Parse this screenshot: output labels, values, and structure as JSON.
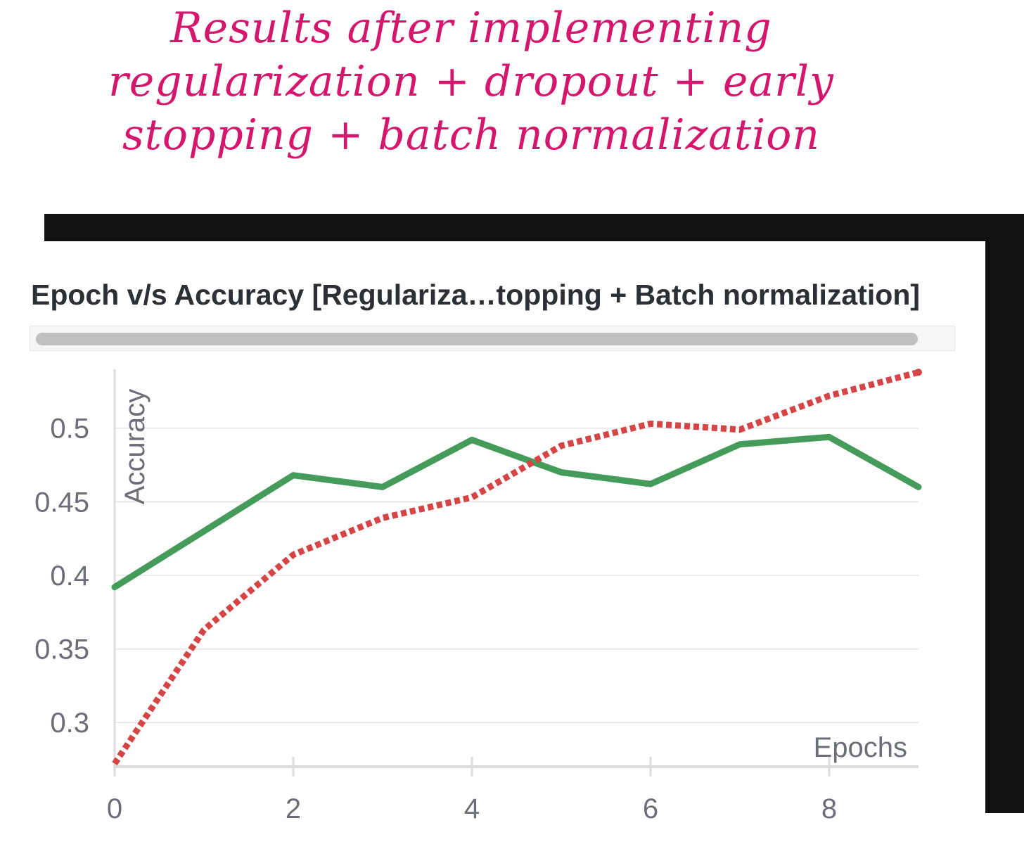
{
  "annotation": {
    "line1": "Results after implementing",
    "line2": "regularization + dropout + early",
    "line3": "stopping + batch normalization"
  },
  "panel": {
    "title": "Epoch v/s Accuracy [Regulariza…topping + Batch normalization]"
  },
  "colors": {
    "annotation": "#d4176d",
    "frame": "#111111",
    "series_solid": "#459b5a",
    "series_dotted": "#d64545",
    "grid": "#e5e5e5",
    "axis": "#dcdcdc",
    "tick_text": "#6b6e76"
  },
  "chart_data": {
    "type": "line",
    "title": "Epoch v/s Accuracy [Regulariza…topping + Batch normalization]",
    "xlabel": "Epochs",
    "ylabel": "Accuracy",
    "xlim": [
      0,
      9
    ],
    "ylim": [
      0.27,
      0.54
    ],
    "xticks": [
      0,
      2,
      4,
      6,
      8
    ],
    "yticks": [
      0.3,
      0.35,
      0.4,
      0.45,
      0.5
    ],
    "ytick_labels": [
      "0.3",
      "0.35",
      "0.4",
      "0.45",
      "0.5"
    ],
    "x": [
      0,
      1,
      2,
      3,
      4,
      5,
      6,
      7,
      8,
      9
    ],
    "grid": "horizontal",
    "legend": "none",
    "series": [
      {
        "style": "solid",
        "color": "#459b5a",
        "values": [
          0.392,
          0.43,
          0.468,
          0.46,
          0.492,
          0.47,
          0.462,
          0.489,
          0.494,
          0.46
        ]
      },
      {
        "style": "dotted",
        "color": "#d64545",
        "values": [
          0.272,
          0.363,
          0.414,
          0.439,
          0.453,
          0.488,
          0.503,
          0.499,
          0.522,
          0.538
        ]
      }
    ]
  }
}
